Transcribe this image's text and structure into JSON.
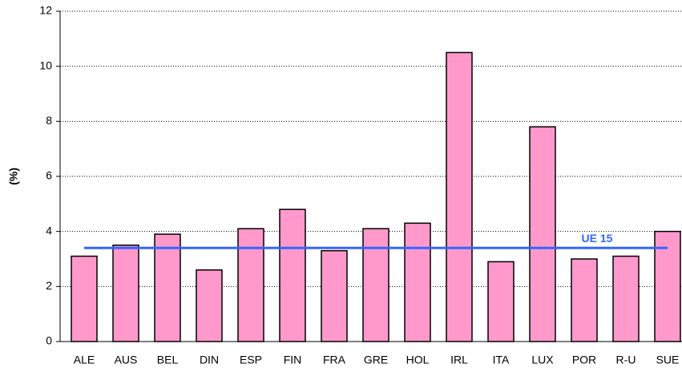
{
  "chart_data": {
    "type": "bar",
    "y_label": "(%)",
    "categories": [
      "ALE",
      "AUS",
      "BEL",
      "DIN",
      "ESP",
      "FIN",
      "FRA",
      "GRE",
      "HOL",
      "IRL",
      "ITA",
      "LUX",
      "POR",
      "R-U",
      "SUE"
    ],
    "values": [
      3.1,
      3.5,
      3.9,
      2.6,
      4.1,
      4.8,
      3.3,
      4.1,
      4.3,
      10.5,
      2.9,
      7.8,
      3.0,
      3.1,
      4.0
    ],
    "color": "#ff99cc",
    "ylim": [
      0,
      12
    ],
    "yticks": [
      0,
      2,
      4,
      6,
      8,
      10,
      12
    ],
    "grid": true,
    "reference_line": {
      "label": "UE 15",
      "value": 3.4,
      "color": "#3366ff"
    }
  }
}
